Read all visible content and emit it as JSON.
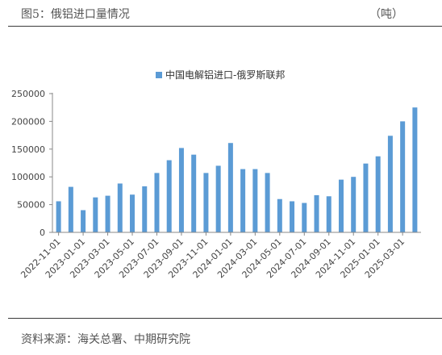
{
  "header": {
    "title": "图5：俄铝进口量情况",
    "unit": "（吨）"
  },
  "footer": {
    "source": "资料来源：海关总署、中期研究院"
  },
  "colors": {
    "bar": "#5b9bd5",
    "axis": "#888888",
    "rule": "#3a3a3a"
  },
  "chart_data": {
    "type": "bar",
    "title": "",
    "xlabel": "",
    "ylabel": "",
    "ylim": [
      0,
      250000
    ],
    "yticks": [
      0,
      50000,
      100000,
      150000,
      200000,
      250000
    ],
    "grid": false,
    "legend_position": "top",
    "categories": [
      "2022-11-01",
      "2022-12-01",
      "2023-01-01",
      "2023-02-01",
      "2023-03-01",
      "2023-04-01",
      "2023-05-01",
      "2023-06-01",
      "2023-07-01",
      "2023-08-01",
      "2023-09-01",
      "2023-10-01",
      "2023-11-01",
      "2023-12-01",
      "2024-01-01",
      "2024-02-01",
      "2024-03-01",
      "2024-04-01",
      "2024-05-01",
      "2024-06-01",
      "2024-07-01",
      "2024-08-01",
      "2024-09-01",
      "2024-10-01",
      "2024-11-01",
      "2024-12-01",
      "2025-01-01",
      "2025-02-01",
      "2025-03-01",
      "2025-04-01"
    ],
    "tick_labels": [
      "2022-11-01",
      "",
      "2023-01-01",
      "",
      "2023-03-01",
      "",
      "2023-05-01",
      "",
      "2023-07-01",
      "",
      "2023-09-01",
      "",
      "2023-11-01",
      "",
      "2024-01-01",
      "",
      "2024-03-01",
      "",
      "2024-05-01",
      "",
      "2024-07-01",
      "",
      "2024-09-01",
      "",
      "2024-11-01",
      "",
      "2025-01-01",
      "",
      "2025-03-01",
      ""
    ],
    "series": [
      {
        "name": "中国电解铝进口-俄罗斯联邦",
        "values": [
          56000,
          82000,
          40000,
          63000,
          66000,
          88000,
          68000,
          83000,
          107000,
          130000,
          152000,
          140000,
          107000,
          120000,
          161000,
          114000,
          114000,
          107000,
          60000,
          56000,
          53000,
          67000,
          65000,
          95000,
          100000,
          124000,
          137000,
          174000,
          200000,
          225000
        ]
      }
    ]
  }
}
